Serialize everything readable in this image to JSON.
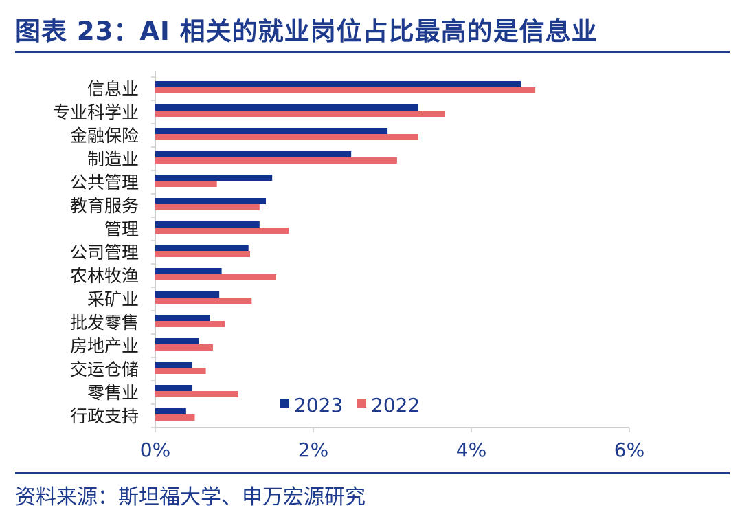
{
  "title": "图表 23：AI 相关的就业岗位占比最高的是信息业",
  "source": "资料来源：斯坦福大学、申万宏源研究",
  "colors": {
    "series_2023": "#11338f",
    "series_2022": "#e8686b",
    "axis": "#bfbfbf",
    "brand": "#1d3a8c"
  },
  "chart_data": {
    "type": "bar",
    "orientation": "horizontal",
    "categories": [
      "信息业",
      "专业科学业",
      "金融保险",
      "制造业",
      "公共管理",
      "教育服务",
      "管理",
      "公司管理",
      "农林牧渔",
      "采矿业",
      "批发零售",
      "房地产业",
      "交运仓储",
      "零售业",
      "行政支持"
    ],
    "series": [
      {
        "name": "2023",
        "values": [
          4.63,
          3.33,
          2.94,
          2.48,
          1.48,
          1.4,
          1.32,
          1.18,
          0.84,
          0.81,
          0.69,
          0.55,
          0.47,
          0.47,
          0.39
        ]
      },
      {
        "name": "2022",
        "values": [
          4.81,
          3.67,
          3.33,
          3.06,
          0.78,
          1.32,
          1.69,
          1.2,
          1.53,
          1.22,
          0.88,
          0.73,
          0.64,
          1.05,
          0.5
        ]
      }
    ],
    "xlim": [
      0,
      6
    ],
    "xticks": [
      0,
      2,
      4,
      6
    ],
    "xtick_labels": [
      "0%",
      "2%",
      "4%",
      "6%"
    ],
    "grid": false,
    "legend": "bottom-right"
  }
}
